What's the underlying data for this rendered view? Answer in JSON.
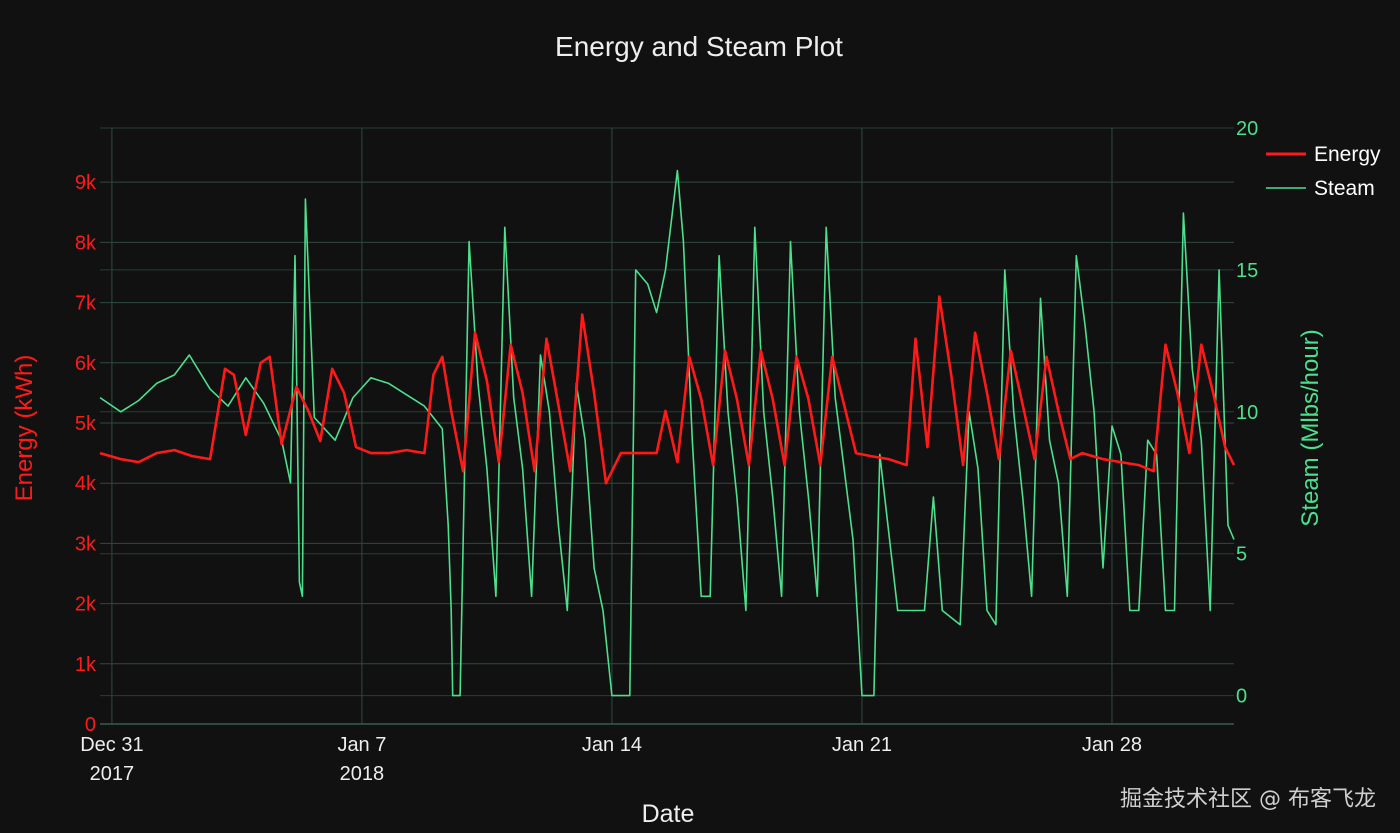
{
  "watermark": "掘金技术社区 @ 布客飞龙",
  "chart_data": {
    "type": "line",
    "title": "Energy and Steam Plot",
    "xlabel": "Date",
    "x_range": [
      "2017-12-30T16:00",
      "2018-01-31T10:00"
    ],
    "x_ticks": [
      {
        "date": "2017-12-31",
        "label": "Dec 31",
        "sublabel": "2017"
      },
      {
        "date": "2018-01-07",
        "label": "Jan 7",
        "sublabel": "2018"
      },
      {
        "date": "2018-01-14",
        "label": "Jan 14",
        "sublabel": ""
      },
      {
        "date": "2018-01-21",
        "label": "Jan 21",
        "sublabel": ""
      },
      {
        "date": "2018-01-28",
        "label": "Jan 28",
        "sublabel": ""
      }
    ],
    "y_left": {
      "label": "Energy (kWh)",
      "range": [
        0,
        9900
      ],
      "ticks": [
        0,
        1000,
        2000,
        3000,
        4000,
        5000,
        6000,
        7000,
        8000,
        9000
      ],
      "tick_labels": [
        "0",
        "1k",
        "2k",
        "3k",
        "4k",
        "5k",
        "6k",
        "7k",
        "8k",
        "9k"
      ],
      "color": "#ff1a1a"
    },
    "y_right": {
      "label": "Steam (Mlbs/hour)",
      "range": [
        -1,
        20
      ],
      "ticks": [
        0,
        5,
        10,
        15,
        20
      ],
      "tick_labels": [
        "0",
        "5",
        "10",
        "15",
        "20"
      ],
      "color": "#4cdf8c"
    },
    "grid": true,
    "legend_position": "top-right",
    "series": [
      {
        "name": "Energy",
        "axis": "left",
        "color": "#ff1a1a",
        "points": [
          [
            "2017-12-30T16:00",
            4500
          ],
          [
            "2017-12-31T06:00",
            4400
          ],
          [
            "2017-12-31T18:00",
            4350
          ],
          [
            "2018-01-01T06:00",
            4500
          ],
          [
            "2018-01-01T18:00",
            4550
          ],
          [
            "2018-01-02T06:00",
            4450
          ],
          [
            "2018-01-02T18:00",
            4400
          ],
          [
            "2018-01-03T04:00",
            5900
          ],
          [
            "2018-01-03T10:00",
            5800
          ],
          [
            "2018-01-03T18:00",
            4800
          ],
          [
            "2018-01-04T04:00",
            6000
          ],
          [
            "2018-01-04T10:00",
            6100
          ],
          [
            "2018-01-04T18:00",
            4650
          ],
          [
            "2018-01-05T04:00",
            5600
          ],
          [
            "2018-01-05T12:00",
            5200
          ],
          [
            "2018-01-05T20:00",
            4700
          ],
          [
            "2018-01-06T04:00",
            5900
          ],
          [
            "2018-01-06T12:00",
            5500
          ],
          [
            "2018-01-06T20:00",
            4600
          ],
          [
            "2018-01-07T06:00",
            4500
          ],
          [
            "2018-01-07T18:00",
            4500
          ],
          [
            "2018-01-08T06:00",
            4550
          ],
          [
            "2018-01-08T18:00",
            4500
          ],
          [
            "2018-01-09T00:00",
            5800
          ],
          [
            "2018-01-09T06:00",
            6100
          ],
          [
            "2018-01-09T12:00",
            5200
          ],
          [
            "2018-01-09T20:00",
            4200
          ],
          [
            "2018-01-10T04:00",
            6500
          ],
          [
            "2018-01-10T12:00",
            5700
          ],
          [
            "2018-01-10T20:00",
            4350
          ],
          [
            "2018-01-11T04:00",
            6300
          ],
          [
            "2018-01-11T12:00",
            5500
          ],
          [
            "2018-01-11T20:00",
            4200
          ],
          [
            "2018-01-12T04:00",
            6400
          ],
          [
            "2018-01-12T12:00",
            5300
          ],
          [
            "2018-01-12T20:00",
            4200
          ],
          [
            "2018-01-13T04:00",
            6800
          ],
          [
            "2018-01-13T12:00",
            5500
          ],
          [
            "2018-01-13T20:00",
            4000
          ],
          [
            "2018-01-14T06:00",
            4500
          ],
          [
            "2018-01-14T18:00",
            4500
          ],
          [
            "2018-01-15T06:00",
            4500
          ],
          [
            "2018-01-15T12:00",
            5200
          ],
          [
            "2018-01-15T20:00",
            4350
          ],
          [
            "2018-01-16T04:00",
            6100
          ],
          [
            "2018-01-16T12:00",
            5400
          ],
          [
            "2018-01-16T20:00",
            4300
          ],
          [
            "2018-01-17T04:00",
            6200
          ],
          [
            "2018-01-17T12:00",
            5400
          ],
          [
            "2018-01-17T20:00",
            4300
          ],
          [
            "2018-01-18T04:00",
            6200
          ],
          [
            "2018-01-18T12:00",
            5400
          ],
          [
            "2018-01-18T20:00",
            4300
          ],
          [
            "2018-01-19T04:00",
            6100
          ],
          [
            "2018-01-19T12:00",
            5400
          ],
          [
            "2018-01-19T20:00",
            4300
          ],
          [
            "2018-01-20T04:00",
            6100
          ],
          [
            "2018-01-20T12:00",
            5300
          ],
          [
            "2018-01-20T20:00",
            4500
          ],
          [
            "2018-01-21T06:00",
            4450
          ],
          [
            "2018-01-21T18:00",
            4400
          ],
          [
            "2018-01-22T06:00",
            4300
          ],
          [
            "2018-01-22T12:00",
            6400
          ],
          [
            "2018-01-22T20:00",
            4600
          ],
          [
            "2018-01-23T04:00",
            7100
          ],
          [
            "2018-01-23T12:00",
            5800
          ],
          [
            "2018-01-23T20:00",
            4300
          ],
          [
            "2018-01-24T04:00",
            6500
          ],
          [
            "2018-01-24T12:00",
            5500
          ],
          [
            "2018-01-24T20:00",
            4400
          ],
          [
            "2018-01-25T04:00",
            6200
          ],
          [
            "2018-01-25T12:00",
            5300
          ],
          [
            "2018-01-25T20:00",
            4400
          ],
          [
            "2018-01-26T04:00",
            6100
          ],
          [
            "2018-01-26T12:00",
            5200
          ],
          [
            "2018-01-26T20:00",
            4400
          ],
          [
            "2018-01-27T04:00",
            4500
          ],
          [
            "2018-01-27T18:00",
            4400
          ],
          [
            "2018-01-28T06:00",
            4350
          ],
          [
            "2018-01-28T18:00",
            4300
          ],
          [
            "2018-01-29T04:00",
            4200
          ],
          [
            "2018-01-29T12:00",
            6300
          ],
          [
            "2018-01-29T20:00",
            5500
          ],
          [
            "2018-01-30T04:00",
            4500
          ],
          [
            "2018-01-30T12:00",
            6300
          ],
          [
            "2018-01-30T20:00",
            5500
          ],
          [
            "2018-01-31T04:00",
            4600
          ],
          [
            "2018-01-31T10:00",
            4300
          ]
        ]
      },
      {
        "name": "Steam",
        "axis": "right",
        "color": "#4cdf8c",
        "points": [
          [
            "2017-12-30T16:00",
            10.5
          ],
          [
            "2017-12-31T06:00",
            10.0
          ],
          [
            "2017-12-31T18:00",
            10.4
          ],
          [
            "2018-01-01T06:00",
            11.0
          ],
          [
            "2018-01-01T18:00",
            11.3
          ],
          [
            "2018-01-02T04:00",
            12.0
          ],
          [
            "2018-01-02T18:00",
            10.8
          ],
          [
            "2018-01-03T06:00",
            10.2
          ],
          [
            "2018-01-03T18:00",
            11.2
          ],
          [
            "2018-01-04T06:00",
            10.3
          ],
          [
            "2018-01-04T18:00",
            9.0
          ],
          [
            "2018-01-05T00:00",
            7.5
          ],
          [
            "2018-01-05T03:00",
            15.5
          ],
          [
            "2018-01-05T06:00",
            4.0
          ],
          [
            "2018-01-05T08:00",
            3.5
          ],
          [
            "2018-01-05T10:00",
            17.5
          ],
          [
            "2018-01-05T16:00",
            9.8
          ],
          [
            "2018-01-06T06:00",
            9.0
          ],
          [
            "2018-01-06T18:00",
            10.5
          ],
          [
            "2018-01-07T06:00",
            11.2
          ],
          [
            "2018-01-07T18:00",
            11.0
          ],
          [
            "2018-01-08T06:00",
            10.6
          ],
          [
            "2018-01-08T18:00",
            10.2
          ],
          [
            "2018-01-09T06:00",
            9.4
          ],
          [
            "2018-01-09T10:00",
            6.0
          ],
          [
            "2018-01-09T12:00",
            3.0
          ],
          [
            "2018-01-09T13:00",
            0
          ],
          [
            "2018-01-09T18:00",
            0
          ],
          [
            "2018-01-10T00:00",
            16.0
          ],
          [
            "2018-01-10T06:00",
            11.0
          ],
          [
            "2018-01-10T12:00",
            8.0
          ],
          [
            "2018-01-10T18:00",
            3.5
          ],
          [
            "2018-01-11T00:00",
            16.5
          ],
          [
            "2018-01-11T06:00",
            10.5
          ],
          [
            "2018-01-11T12:00",
            8.0
          ],
          [
            "2018-01-11T18:00",
            3.5
          ],
          [
            "2018-01-12T00:00",
            12.0
          ],
          [
            "2018-01-12T06:00",
            10.0
          ],
          [
            "2018-01-12T12:00",
            6.0
          ],
          [
            "2018-01-12T18:00",
            3.0
          ],
          [
            "2018-01-13T00:00",
            11.0
          ],
          [
            "2018-01-13T06:00",
            9.0
          ],
          [
            "2018-01-13T12:00",
            4.5
          ],
          [
            "2018-01-13T18:00",
            3.0
          ],
          [
            "2018-01-14T00:00",
            0
          ],
          [
            "2018-01-14T12:00",
            0
          ],
          [
            "2018-01-14T16:00",
            15.0
          ],
          [
            "2018-01-15T00:00",
            14.5
          ],
          [
            "2018-01-15T06:00",
            13.5
          ],
          [
            "2018-01-15T12:00",
            15.0
          ],
          [
            "2018-01-15T20:00",
            18.5
          ],
          [
            "2018-01-16T00:00",
            16.0
          ],
          [
            "2018-01-16T06:00",
            9.0
          ],
          [
            "2018-01-16T12:00",
            3.5
          ],
          [
            "2018-01-16T18:00",
            3.5
          ],
          [
            "2018-01-17T00:00",
            15.5
          ],
          [
            "2018-01-17T06:00",
            10.0
          ],
          [
            "2018-01-17T12:00",
            7.0
          ],
          [
            "2018-01-17T18:00",
            3.0
          ],
          [
            "2018-01-18T00:00",
            16.5
          ],
          [
            "2018-01-18T06:00",
            10.0
          ],
          [
            "2018-01-18T12:00",
            7.0
          ],
          [
            "2018-01-18T18:00",
            3.5
          ],
          [
            "2018-01-19T00:00",
            16.0
          ],
          [
            "2018-01-19T06:00",
            10.0
          ],
          [
            "2018-01-19T12:00",
            7.0
          ],
          [
            "2018-01-19T18:00",
            3.5
          ],
          [
            "2018-01-20T00:00",
            16.5
          ],
          [
            "2018-01-20T06:00",
            10.5
          ],
          [
            "2018-01-20T12:00",
            8.0
          ],
          [
            "2018-01-20T18:00",
            5.5
          ],
          [
            "2018-01-21T00:00",
            0
          ],
          [
            "2018-01-21T08:00",
            0
          ],
          [
            "2018-01-21T12:00",
            8.5
          ],
          [
            "2018-01-22T00:00",
            3.0
          ],
          [
            "2018-01-22T18:00",
            3.0
          ],
          [
            "2018-01-23T00:00",
            7.0
          ],
          [
            "2018-01-23T06:00",
            3.0
          ],
          [
            "2018-01-23T18:00",
            2.5
          ],
          [
            "2018-01-24T00:00",
            10.0
          ],
          [
            "2018-01-24T06:00",
            8.0
          ],
          [
            "2018-01-24T12:00",
            3.0
          ],
          [
            "2018-01-24T18:00",
            2.5
          ],
          [
            "2018-01-25T00:00",
            15.0
          ],
          [
            "2018-01-25T06:00",
            10.0
          ],
          [
            "2018-01-25T12:00",
            7.0
          ],
          [
            "2018-01-25T18:00",
            3.5
          ],
          [
            "2018-01-26T00:00",
            14.0
          ],
          [
            "2018-01-26T06:00",
            9.0
          ],
          [
            "2018-01-26T12:00",
            7.5
          ],
          [
            "2018-01-26T18:00",
            3.5
          ],
          [
            "2018-01-27T00:00",
            15.5
          ],
          [
            "2018-01-27T06:00",
            13.0
          ],
          [
            "2018-01-27T12:00",
            10.0
          ],
          [
            "2018-01-27T18:00",
            4.5
          ],
          [
            "2018-01-28T00:00",
            9.5
          ],
          [
            "2018-01-28T06:00",
            8.5
          ],
          [
            "2018-01-28T12:00",
            3.0
          ],
          [
            "2018-01-28T18:00",
            3.0
          ],
          [
            "2018-01-29T00:00",
            9.0
          ],
          [
            "2018-01-29T06:00",
            8.5
          ],
          [
            "2018-01-29T12:00",
            3.0
          ],
          [
            "2018-01-29T18:00",
            3.0
          ],
          [
            "2018-01-30T00:00",
            17.0
          ],
          [
            "2018-01-30T06:00",
            11.5
          ],
          [
            "2018-01-30T12:00",
            9.0
          ],
          [
            "2018-01-30T18:00",
            3.0
          ],
          [
            "2018-01-31T00:00",
            15.0
          ],
          [
            "2018-01-31T06:00",
            6.0
          ],
          [
            "2018-01-31T10:00",
            5.5
          ]
        ]
      }
    ]
  }
}
